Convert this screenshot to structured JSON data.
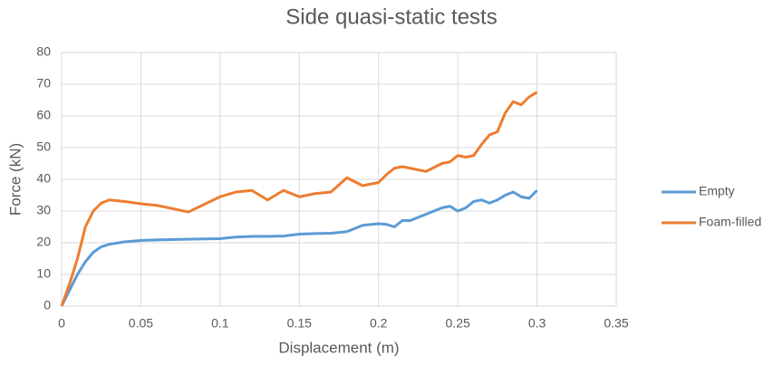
{
  "chart_data": {
    "type": "line",
    "title": "Side quasi-static tests",
    "x_label": "Displacement (m)",
    "y_label": "Force (kN)",
    "x": [
      0,
      0.005,
      0.01,
      0.015,
      0.02,
      0.025,
      0.03,
      0.04,
      0.05,
      0.06,
      0.08,
      0.1,
      0.11,
      0.12,
      0.13,
      0.14,
      0.15,
      0.16,
      0.17,
      0.18,
      0.19,
      0.2,
      0.205,
      0.21,
      0.215,
      0.22,
      0.23,
      0.24,
      0.245,
      0.25,
      0.255,
      0.26,
      0.265,
      0.27,
      0.275,
      0.28,
      0.285,
      0.29,
      0.295,
      0.3
    ],
    "series": [
      {
        "name": "Empty",
        "color": "#5b9bd5",
        "values": [
          0,
          5,
          10,
          14,
          17,
          18.7,
          19.5,
          20.3,
          20.7,
          20.9,
          21.1,
          21.3,
          21.8,
          22,
          22,
          22.1,
          22.7,
          22.9,
          23,
          23.5,
          25.5,
          26,
          25.8,
          25,
          27,
          27,
          29,
          31,
          31.5,
          30,
          31,
          33,
          33.5,
          32.5,
          33.5,
          35,
          36,
          34.5,
          34,
          36.5
        ]
      },
      {
        "name": "Foam-filled",
        "color": "#ed7d31",
        "values": [
          0,
          7,
          15,
          25,
          30,
          32.5,
          33.5,
          33,
          32.3,
          31.8,
          29.7,
          34.5,
          36,
          36.5,
          33.5,
          36.5,
          34.5,
          35.5,
          36,
          40.5,
          38,
          39,
          41.5,
          43.5,
          44,
          43.5,
          42.5,
          45,
          45.5,
          47.5,
          47,
          47.5,
          51,
          54,
          55,
          61,
          64.5,
          63.5,
          66,
          67.5
        ]
      }
    ],
    "xlim": [
      0,
      0.35
    ],
    "xticks": [
      0,
      0.05,
      0.1,
      0.15,
      0.2,
      0.25,
      0.3,
      0.35
    ],
    "ylim": [
      0,
      80
    ],
    "yticks": [
      0,
      10,
      20,
      30,
      40,
      50,
      60,
      70,
      80
    ],
    "grid": true,
    "legend": "right"
  }
}
